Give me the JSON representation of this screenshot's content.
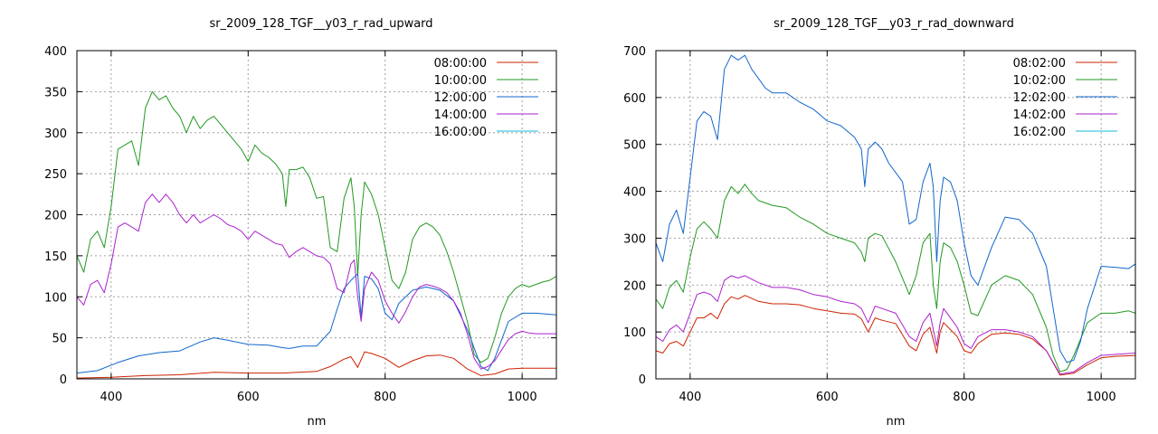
{
  "chart_data": [
    {
      "type": "line",
      "title": "sr_2009_128_TGF__y03_r_rad_upward",
      "xlabel": "nm",
      "ylabel": "",
      "xlim": [
        350,
        1050
      ],
      "ylim": [
        0,
        400
      ],
      "xticks": [
        400,
        600,
        800,
        1000
      ],
      "yticks": [
        0,
        50,
        100,
        150,
        200,
        250,
        300,
        350,
        400
      ],
      "grid": true,
      "legend": "top-right",
      "series": [
        {
          "name": "08:00:00",
          "color": "#cc2200",
          "x": [
            350,
            400,
            450,
            500,
            550,
            600,
            650,
            700,
            720,
            740,
            750,
            760,
            770,
            780,
            800,
            820,
            840,
            860,
            880,
            900,
            920,
            940,
            960,
            980,
            1000,
            1020,
            1050
          ],
          "y": [
            1,
            2,
            4,
            5,
            8,
            7,
            7,
            9,
            15,
            24,
            27,
            14,
            33,
            31,
            25,
            14,
            22,
            28,
            29,
            25,
            12,
            4,
            6,
            12,
            13,
            13,
            13
          ]
        },
        {
          "name": "10:00:00",
          "color": "#229922",
          "x": [
            350,
            360,
            370,
            380,
            390,
            400,
            410,
            420,
            430,
            440,
            450,
            460,
            470,
            480,
            490,
            500,
            510,
            520,
            530,
            540,
            550,
            560,
            570,
            580,
            590,
            600,
            610,
            620,
            630,
            640,
            650,
            655,
            660,
            670,
            680,
            690,
            700,
            710,
            720,
            730,
            740,
            750,
            755,
            760,
            765,
            770,
            780,
            790,
            800,
            810,
            820,
            830,
            840,
            850,
            860,
            870,
            880,
            890,
            900,
            910,
            920,
            930,
            940,
            950,
            960,
            970,
            980,
            990,
            1000,
            1010,
            1020,
            1030,
            1040,
            1050
          ],
          "y": [
            150,
            130,
            170,
            180,
            160,
            210,
            280,
            285,
            290,
            260,
            330,
            350,
            340,
            345,
            330,
            320,
            300,
            320,
            305,
            315,
            320,
            310,
            300,
            290,
            280,
            265,
            285,
            275,
            270,
            262,
            250,
            210,
            255,
            255,
            258,
            245,
            220,
            222,
            160,
            155,
            220,
            245,
            210,
            125,
            200,
            240,
            225,
            200,
            160,
            120,
            110,
            130,
            170,
            185,
            190,
            185,
            175,
            155,
            130,
            100,
            70,
            30,
            20,
            25,
            50,
            80,
            100,
            110,
            115,
            112,
            115,
            118,
            120,
            125
          ]
        },
        {
          "name": "12:00:00",
          "color": "#1166cc",
          "x": [
            350,
            380,
            410,
            440,
            470,
            500,
            530,
            550,
            570,
            600,
            630,
            650,
            660,
            680,
            700,
            720,
            730,
            740,
            750,
            760,
            765,
            770,
            780,
            790,
            800,
            810,
            820,
            840,
            860,
            880,
            900,
            920,
            940,
            950,
            960,
            980,
            1000,
            1020,
            1050
          ],
          "y": [
            7,
            10,
            20,
            28,
            32,
            34,
            45,
            50,
            47,
            42,
            41,
            38,
            37,
            40,
            40,
            58,
            85,
            110,
            120,
            128,
            75,
            125,
            122,
            110,
            80,
            72,
            92,
            108,
            112,
            108,
            95,
            60,
            15,
            10,
            25,
            70,
            80,
            80,
            78
          ]
        },
        {
          "name": "14:00:00",
          "color": "#aa22cc",
          "x": [
            350,
            360,
            370,
            380,
            390,
            400,
            410,
            420,
            430,
            440,
            450,
            460,
            470,
            480,
            490,
            500,
            510,
            520,
            530,
            540,
            550,
            560,
            570,
            580,
            590,
            600,
            610,
            620,
            630,
            640,
            650,
            660,
            670,
            680,
            690,
            700,
            710,
            720,
            730,
            740,
            750,
            755,
            760,
            765,
            770,
            780,
            790,
            800,
            810,
            820,
            830,
            840,
            850,
            860,
            870,
            880,
            890,
            900,
            910,
            920,
            930,
            940,
            950,
            960,
            970,
            980,
            990,
            1000,
            1010,
            1020,
            1030,
            1040,
            1050
          ],
          "y": [
            100,
            90,
            115,
            120,
            105,
            140,
            185,
            190,
            185,
            180,
            215,
            225,
            215,
            225,
            215,
            200,
            190,
            200,
            190,
            195,
            200,
            195,
            188,
            185,
            180,
            170,
            180,
            175,
            170,
            165,
            163,
            148,
            155,
            160,
            155,
            150,
            148,
            140,
            110,
            105,
            140,
            145,
            100,
            70,
            110,
            130,
            120,
            95,
            80,
            68,
            82,
            100,
            112,
            115,
            113,
            110,
            105,
            95,
            80,
            55,
            25,
            12,
            15,
            22,
            35,
            48,
            55,
            58,
            56,
            55,
            55,
            55,
            55
          ]
        },
        {
          "name": "16:00:00",
          "color": "#11bbdd",
          "x": [],
          "y": []
        }
      ]
    },
    {
      "type": "line",
      "title": "sr_2009_128_TGF__y03_r_rad_downward",
      "xlabel": "nm",
      "ylabel": "",
      "xlim": [
        350,
        1050
      ],
      "ylim": [
        0,
        700
      ],
      "xticks": [
        400,
        600,
        800,
        1000
      ],
      "yticks": [
        0,
        100,
        200,
        300,
        400,
        500,
        600,
        700
      ],
      "grid": true,
      "legend": "top-right",
      "series": [
        {
          "name": "08:02:00",
          "color": "#cc2200",
          "x": [
            350,
            360,
            370,
            380,
            390,
            400,
            410,
            420,
            430,
            440,
            450,
            460,
            470,
            480,
            500,
            520,
            540,
            560,
            580,
            600,
            620,
            640,
            650,
            660,
            670,
            680,
            700,
            720,
            730,
            740,
            750,
            760,
            765,
            770,
            780,
            790,
            800,
            810,
            820,
            840,
            860,
            880,
            900,
            920,
            940,
            960,
            980,
            1000,
            1020,
            1050
          ],
          "y": [
            60,
            55,
            75,
            80,
            70,
            100,
            130,
            130,
            140,
            128,
            160,
            175,
            170,
            178,
            165,
            160,
            160,
            158,
            150,
            145,
            140,
            138,
            128,
            100,
            130,
            125,
            118,
            70,
            60,
            95,
            110,
            55,
            100,
            120,
            105,
            90,
            60,
            55,
            75,
            95,
            98,
            95,
            85,
            60,
            8,
            12,
            30,
            45,
            48,
            50
          ]
        },
        {
          "name": "10:02:00",
          "color": "#229922",
          "x": [
            350,
            360,
            370,
            380,
            390,
            400,
            410,
            420,
            430,
            440,
            450,
            460,
            470,
            480,
            490,
            500,
            520,
            540,
            560,
            580,
            600,
            620,
            640,
            650,
            655,
            660,
            670,
            680,
            700,
            720,
            730,
            740,
            750,
            755,
            760,
            765,
            770,
            780,
            790,
            800,
            810,
            820,
            840,
            860,
            880,
            900,
            920,
            930,
            940,
            950,
            960,
            980,
            1000,
            1020,
            1040,
            1050
          ],
          "y": [
            170,
            150,
            195,
            210,
            185,
            260,
            320,
            335,
            320,
            300,
            380,
            410,
            395,
            415,
            395,
            380,
            370,
            365,
            345,
            330,
            310,
            300,
            290,
            270,
            250,
            300,
            310,
            305,
            250,
            180,
            220,
            290,
            310,
            200,
            150,
            250,
            290,
            280,
            250,
            200,
            140,
            135,
            200,
            220,
            210,
            180,
            110,
            50,
            15,
            20,
            50,
            120,
            140,
            140,
            145,
            140
          ]
        },
        {
          "name": "12:02:00",
          "color": "#1166cc",
          "x": [
            350,
            360,
            370,
            380,
            390,
            400,
            410,
            420,
            430,
            440,
            450,
            460,
            470,
            480,
            490,
            500,
            510,
            520,
            540,
            560,
            580,
            600,
            620,
            640,
            650,
            655,
            660,
            670,
            680,
            690,
            700,
            710,
            720,
            730,
            740,
            750,
            755,
            760,
            765,
            770,
            780,
            790,
            800,
            810,
            820,
            840,
            860,
            880,
            900,
            920,
            930,
            940,
            950,
            960,
            970,
            980,
            1000,
            1020,
            1040,
            1050
          ],
          "y": [
            290,
            250,
            330,
            360,
            310,
            430,
            550,
            570,
            560,
            510,
            660,
            690,
            680,
            690,
            660,
            640,
            620,
            610,
            610,
            590,
            575,
            550,
            540,
            515,
            490,
            410,
            490,
            505,
            490,
            460,
            440,
            420,
            330,
            340,
            420,
            460,
            410,
            250,
            380,
            430,
            420,
            380,
            290,
            220,
            200,
            280,
            345,
            340,
            310,
            240,
            150,
            60,
            35,
            40,
            80,
            150,
            240,
            238,
            235,
            245
          ]
        },
        {
          "name": "14:02:00",
          "color": "#aa22cc",
          "x": [
            350,
            360,
            370,
            380,
            390,
            400,
            410,
            420,
            430,
            440,
            450,
            460,
            470,
            480,
            500,
            520,
            540,
            560,
            580,
            600,
            620,
            640,
            650,
            660,
            670,
            680,
            700,
            720,
            730,
            740,
            750,
            760,
            765,
            770,
            780,
            790,
            800,
            810,
            820,
            840,
            860,
            880,
            900,
            920,
            940,
            960,
            980,
            1000,
            1020,
            1050
          ],
          "y": [
            90,
            80,
            105,
            115,
            100,
            140,
            180,
            185,
            180,
            165,
            210,
            220,
            215,
            220,
            205,
            195,
            195,
            190,
            180,
            175,
            165,
            160,
            150,
            120,
            155,
            150,
            140,
            90,
            80,
            120,
            140,
            70,
            120,
            150,
            130,
            110,
            75,
            65,
            90,
            105,
            105,
            100,
            90,
            60,
            10,
            15,
            35,
            50,
            52,
            55
          ]
        },
        {
          "name": "16:02:00",
          "color": "#11bbdd",
          "x": [],
          "y": []
        }
      ]
    }
  ]
}
